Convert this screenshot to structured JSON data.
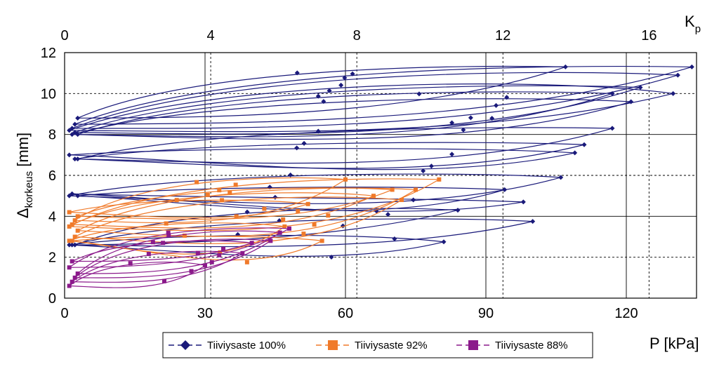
{
  "chart_data": {
    "type": "line",
    "xlabel": "P [kPa]",
    "ylabel_main": "Δ",
    "ylabel_sub": "korkeus",
    "ylabel_unit": " [mm]",
    "x2label_main": "K",
    "x2label_sub": "p",
    "xlim": [
      0,
      135
    ],
    "ylim": [
      0,
      12
    ],
    "x2lim": [
      0,
      17.3
    ],
    "xticks": [
      "0",
      "30",
      "60",
      "90",
      "120"
    ],
    "yticks": [
      "0",
      "2",
      "4",
      "6",
      "8",
      "10",
      "12"
    ],
    "x2ticks": [
      "0",
      "4",
      "8",
      "12",
      "16"
    ],
    "grid": true,
    "legend_position": "bottom",
    "series": [
      {
        "name": "Tiiviysaste 100%",
        "color": "#1a1a7a",
        "marker": "diamond",
        "loops": [
          {
            "base": 2.6,
            "px": 81,
            "py": 2.75,
            "top": 3.2,
            "low": 1.4
          },
          {
            "base": 2.6,
            "px": 100,
            "py": 3.75,
            "top": 4.0,
            "low": 2.2
          },
          {
            "base": 2.6,
            "px": 84,
            "py": 4.3,
            "top": 4.5,
            "low": 2.9
          },
          {
            "base": 5.0,
            "px": 94,
            "py": 5.3,
            "top": 5.5,
            "low": 3.4
          },
          {
            "base": 5.0,
            "px": 106,
            "py": 5.9,
            "top": 6.2,
            "low": 3.9
          },
          {
            "base": 5.1,
            "px": 98,
            "py": 4.7,
            "top": 4.9,
            "low": 3.6
          },
          {
            "base": 6.8,
            "px": 111,
            "py": 7.5,
            "top": 7.7,
            "low": 5.6
          },
          {
            "base": 6.8,
            "px": 117,
            "py": 8.3,
            "top": 8.4,
            "low": 6.0
          },
          {
            "base": 7.0,
            "px": 109,
            "py": 7.1,
            "top": 7.4,
            "low": 5.5
          },
          {
            "base": 8.0,
            "px": 121,
            "py": 9.6,
            "top": 9.9,
            "low": 7.1
          },
          {
            "base": 8.1,
            "px": 123,
            "py": 10.3,
            "top": 10.5,
            "low": 7.6
          },
          {
            "base": 8.0,
            "px": 117,
            "py": 10.0,
            "top": 10.2,
            "low": 7.4
          },
          {
            "base": 8.2,
            "px": 130,
            "py": 10.0,
            "top": 10.8,
            "low": 7.8
          },
          {
            "base": 8.3,
            "px": 131,
            "py": 10.9,
            "top": 11.2,
            "low": 8.2
          },
          {
            "base": 8.5,
            "px": 134,
            "py": 11.3,
            "top": 11.4,
            "low": 8.6
          },
          {
            "base": 8.8,
            "px": 107,
            "py": 11.3,
            "top": 11.4,
            "low": 8.9
          }
        ]
      },
      {
        "name": "Tiiviysaste 92%",
        "color": "#f07a2a",
        "marker": "square",
        "loops": [
          {
            "base": 2.8,
            "px": 47,
            "py": 3.5,
            "top": 3.8,
            "low": 1.2
          },
          {
            "base": 2.8,
            "px": 55,
            "py": 2.8,
            "top": 3.1,
            "low": 0.9
          },
          {
            "base": 3.0,
            "px": 72,
            "py": 4.8,
            "top": 5.1,
            "low": 1.8
          },
          {
            "base": 3.3,
            "px": 75,
            "py": 5.3,
            "top": 5.5,
            "low": 2.2
          },
          {
            "base": 3.5,
            "px": 80,
            "py": 5.8,
            "top": 5.9,
            "low": 2.6
          },
          {
            "base": 3.6,
            "px": 66,
            "py": 5.0,
            "top": 5.3,
            "low": 2.9
          },
          {
            "base": 3.8,
            "px": 60,
            "py": 5.8,
            "top": 6.0,
            "low": 3.2
          },
          {
            "base": 4.0,
            "px": 70,
            "py": 5.3,
            "top": 5.5,
            "low": 3.4
          },
          {
            "base": 4.2,
            "px": 52,
            "py": 4.6,
            "top": 4.9,
            "low": 3.5
          }
        ]
      },
      {
        "name": "Tiiviysaste 88%",
        "color": "#8b1a8b",
        "marker": "square",
        "loops": [
          {
            "base": 0.6,
            "px": 30,
            "py": 1.6,
            "top": 1.9,
            "low": 0.2
          },
          {
            "base": 0.8,
            "px": 38,
            "py": 2.2,
            "top": 2.4,
            "low": 0.6
          },
          {
            "base": 1.0,
            "px": 44,
            "py": 2.8,
            "top": 3.0,
            "low": 0.9
          },
          {
            "base": 1.2,
            "px": 46,
            "py": 3.2,
            "top": 3.4,
            "low": 1.2
          },
          {
            "base": 1.5,
            "px": 48,
            "py": 3.4,
            "top": 3.5,
            "low": 1.6
          },
          {
            "base": 1.8,
            "px": 40,
            "py": 2.7,
            "top": 2.9,
            "low": 1.8
          }
        ]
      }
    ]
  }
}
